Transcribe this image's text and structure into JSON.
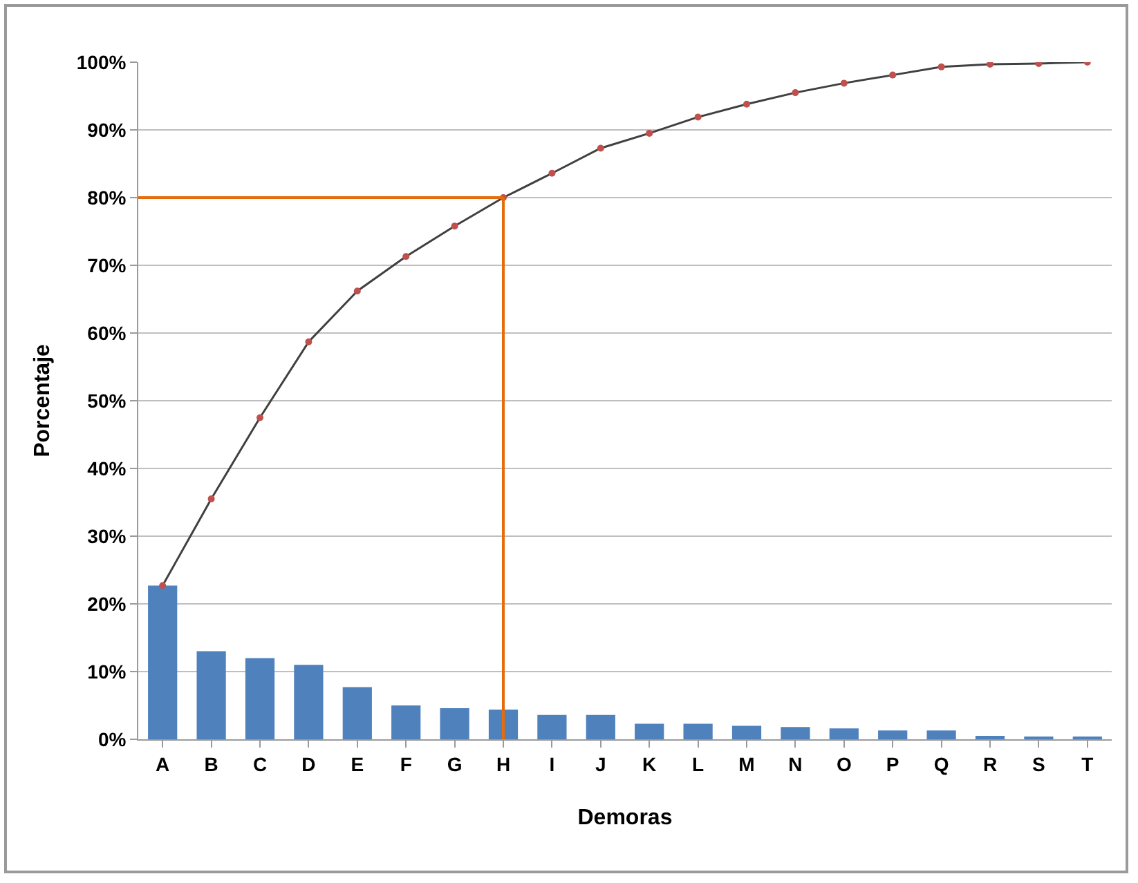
{
  "chart_data": {
    "type": "bar",
    "xlabel": "Demoras",
    "ylabel": "Porcentaje",
    "categories": [
      "A",
      "B",
      "C",
      "D",
      "E",
      "F",
      "G",
      "H",
      "I",
      "J",
      "K",
      "L",
      "M",
      "N",
      "O",
      "P",
      "Q",
      "R",
      "S",
      "T"
    ],
    "series": [
      {
        "color": "#4f81bd",
        "values": [
          22.7,
          13,
          12,
          11,
          7.7,
          5,
          4.6,
          4.4,
          3.6,
          3.6,
          2.3,
          2.3,
          2,
          1.8,
          1.6,
          1.3,
          1.3,
          0.5,
          0.3,
          0.3
        ]
      },
      {
        "type": "line",
        "color": "#404040",
        "marker": "circle",
        "values": [
          22.7,
          35.5,
          47.5,
          58.7,
          66.2,
          71.3,
          75.8,
          80,
          83.6,
          87.3,
          89.5,
          91.9,
          93.8,
          95.5,
          96.9,
          98.1,
          99.3,
          99.7,
          99.8,
          100
        ]
      }
    ],
    "ref_lines": [
      {
        "axis": "y",
        "value": 80,
        "color": "#e46c0a"
      },
      {
        "axis": "x",
        "value": "H",
        "color": "#e46c0a"
      }
    ],
    "ylim": [
      0,
      100
    ],
    "yticks": [
      {
        "value": 0,
        "label": "0%"
      },
      {
        "value": 10,
        "label": "10%"
      },
      {
        "value": 20,
        "label": "20%"
      },
      {
        "value": 30,
        "label": "30%"
      },
      {
        "value": 40,
        "label": "40%"
      },
      {
        "value": 50,
        "label": "50%"
      },
      {
        "value": 60,
        "label": "60%"
      },
      {
        "value": 70,
        "label": "70%"
      },
      {
        "value": 80,
        "label": "80%"
      },
      {
        "value": 90,
        "label": "90%"
      },
      {
        "value": 100,
        "label": "100%"
      }
    ],
    "grid": "y"
  }
}
